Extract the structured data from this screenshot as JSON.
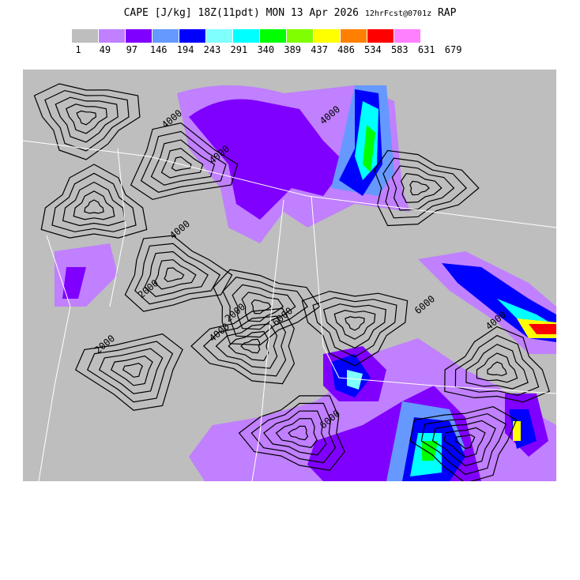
{
  "header": {
    "field": "CAPE",
    "units": "[J/kg]",
    "valid": "18Z(11pdt) MON 13 Apr 2026",
    "forecast": "12hrFcst@0701z",
    "model": "RAP"
  },
  "legend": {
    "colors": [
      "#bebebe",
      "#c080ff",
      "#8000ff",
      "#6699ff",
      "#0000ff",
      "#80ffff",
      "#00ffff",
      "#00ff00",
      "#80ff00",
      "#ffff00",
      "#ff8000",
      "#ff0000",
      "#ff80ff"
    ],
    "labels": [
      "1",
      "49",
      "97",
      "146",
      "194",
      "243",
      "291",
      "340",
      "389",
      "437",
      "486",
      "534",
      "583",
      "631",
      "679"
    ]
  },
  "map": {
    "contour_labels": [
      "4000",
      "4000",
      "4000",
      "2000",
      "2000",
      "2000",
      "4000",
      "6000",
      "6000",
      "4000",
      "6000",
      "4000"
    ]
  }
}
